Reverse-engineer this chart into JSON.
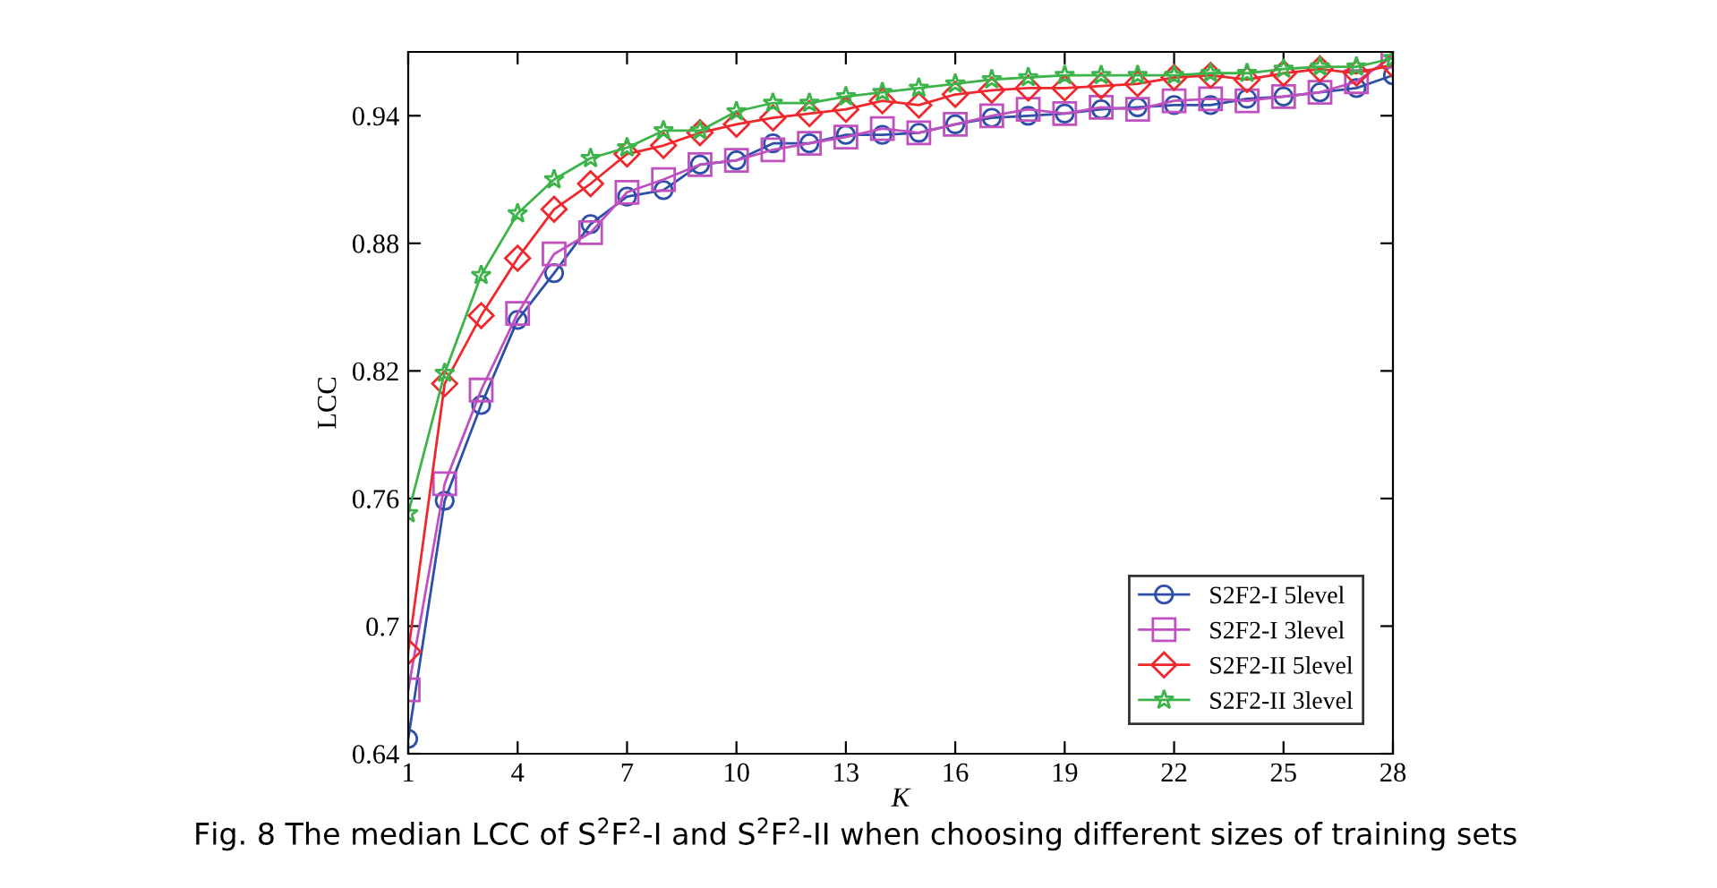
{
  "chart_data": {
    "type": "line",
    "xlabel": "K",
    "ylabel": "LCC",
    "x": [
      1,
      2,
      3,
      4,
      5,
      6,
      7,
      8,
      9,
      10,
      11,
      12,
      13,
      14,
      15,
      16,
      17,
      18,
      19,
      20,
      21,
      22,
      23,
      24,
      25,
      26,
      27,
      28
    ],
    "xlim": [
      1,
      28
    ],
    "xticks": [
      1,
      4,
      7,
      10,
      13,
      16,
      19,
      22,
      25,
      28
    ],
    "ylim": [
      0.64,
      0.97
    ],
    "yticks": [
      0.64,
      0.7,
      0.76,
      0.82,
      0.88,
      0.94
    ],
    "grid": false,
    "legend": "bottom right",
    "series": [
      {
        "name": "S2F2-I 5level",
        "color": "#2e4fa8",
        "marker": "circle",
        "values": [
          0.647,
          0.759,
          0.804,
          0.844,
          0.866,
          0.889,
          0.902,
          0.905,
          0.917,
          0.919,
          0.927,
          0.927,
          0.931,
          0.931,
          0.932,
          0.936,
          0.939,
          0.94,
          0.941,
          0.943,
          0.944,
          0.945,
          0.945,
          0.948,
          0.949,
          0.951,
          0.953,
          0.959
        ]
      },
      {
        "name": "S2F2-I 3level",
        "color": "#c04fc0",
        "marker": "square",
        "values": [
          0.67,
          0.767,
          0.811,
          0.847,
          0.875,
          0.885,
          0.904,
          0.91,
          0.917,
          0.919,
          0.924,
          0.927,
          0.93,
          0.934,
          0.932,
          0.936,
          0.94,
          0.943,
          0.941,
          0.944,
          0.943,
          0.947,
          0.948,
          0.947,
          0.949,
          0.951,
          0.956,
          0.968
        ]
      },
      {
        "name": "S2F2-II 5level",
        "color": "#f0282d",
        "marker": "diamond",
        "values": [
          0.688,
          0.814,
          0.846,
          0.873,
          0.896,
          0.908,
          0.922,
          0.926,
          0.932,
          0.936,
          0.939,
          0.941,
          0.943,
          0.947,
          0.945,
          0.95,
          0.952,
          0.953,
          0.953,
          0.954,
          0.955,
          0.958,
          0.959,
          0.957,
          0.96,
          0.962,
          0.96,
          0.964
        ]
      },
      {
        "name": "S2F2-II 3level",
        "color": "#3cb44a",
        "marker": "star",
        "values": [
          0.753,
          0.819,
          0.865,
          0.894,
          0.91,
          0.92,
          0.925,
          0.933,
          0.933,
          0.942,
          0.946,
          0.946,
          0.949,
          0.951,
          0.953,
          0.955,
          0.957,
          0.958,
          0.959,
          0.959,
          0.959,
          0.959,
          0.96,
          0.96,
          0.962,
          0.963,
          0.963,
          0.967
        ]
      }
    ],
    "annotations": [
      "Fig. 8 The median LCC of S$^{2}$F$^{2}$-I and S$^{2}$F$^{2}$-II when choosing different sizes of training sets"
    ]
  }
}
